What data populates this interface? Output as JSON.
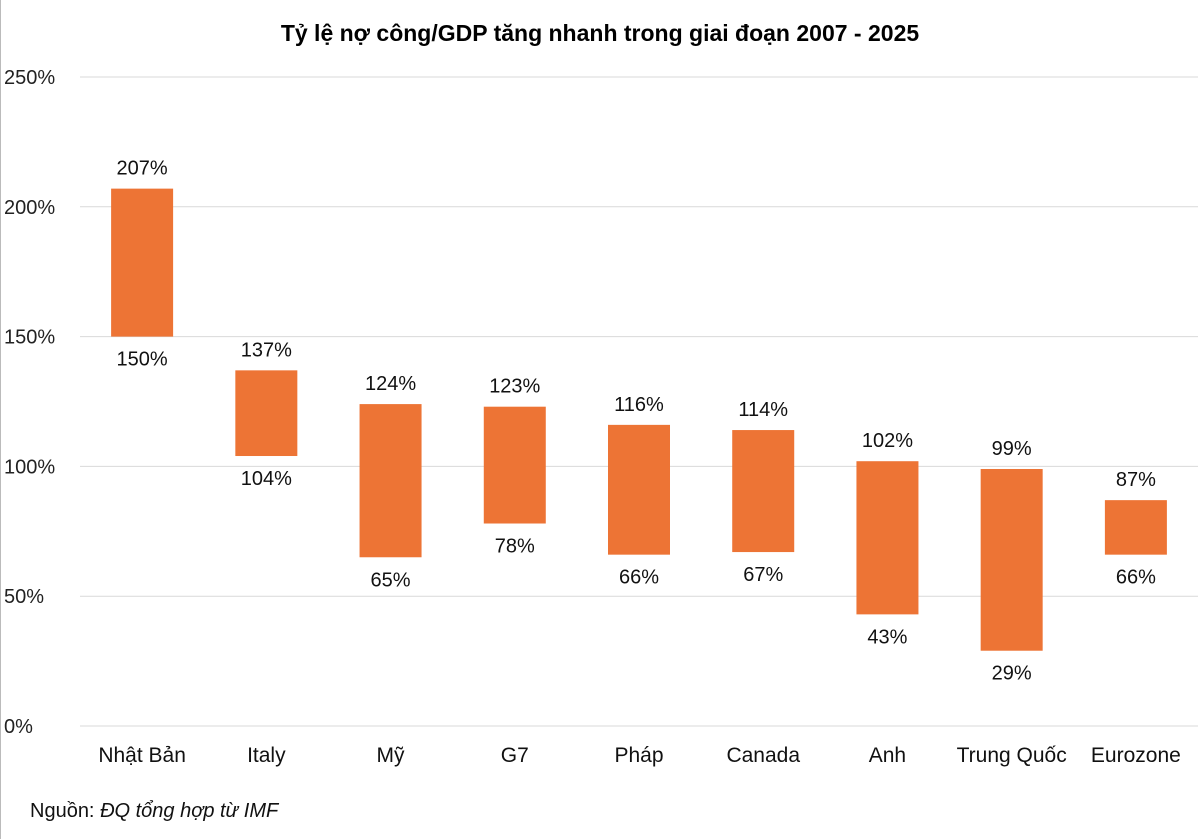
{
  "chart_data": {
    "type": "bar",
    "subtype": "floating-range",
    "title": "Tỷ lệ nợ công/GDP tăng nhanh trong giai đoạn 2007 - 2025",
    "categories": [
      "Nhật Bản",
      "Italy",
      "Mỹ",
      "G7",
      "Pháp",
      "Canada",
      "Anh",
      "Trung Quốc",
      "Eurozone"
    ],
    "low": [
      150,
      104,
      65,
      78,
      66,
      67,
      43,
      29,
      66
    ],
    "high": [
      207,
      137,
      124,
      123,
      116,
      114,
      102,
      99,
      87
    ],
    "low_labels": [
      "150%",
      "104%",
      "65%",
      "78%",
      "66%",
      "67%",
      "43%",
      "29%",
      "66%"
    ],
    "high_labels": [
      "207%",
      "137%",
      "124%",
      "123%",
      "116%",
      "114%",
      "102%",
      "99%",
      "87%"
    ],
    "ylim": [
      0,
      250
    ],
    "yticks": [
      0,
      50,
      100,
      150,
      200,
      250
    ],
    "ytick_labels": [
      "0%",
      "50%",
      "100%",
      "150%",
      "200%",
      "250%"
    ],
    "grid": true,
    "bar_color": "#ED7435",
    "grid_color": "#D9D9D9"
  },
  "source": {
    "prefix": "Nguồn: ",
    "text": "ĐQ tổng hợp từ IMF"
  }
}
